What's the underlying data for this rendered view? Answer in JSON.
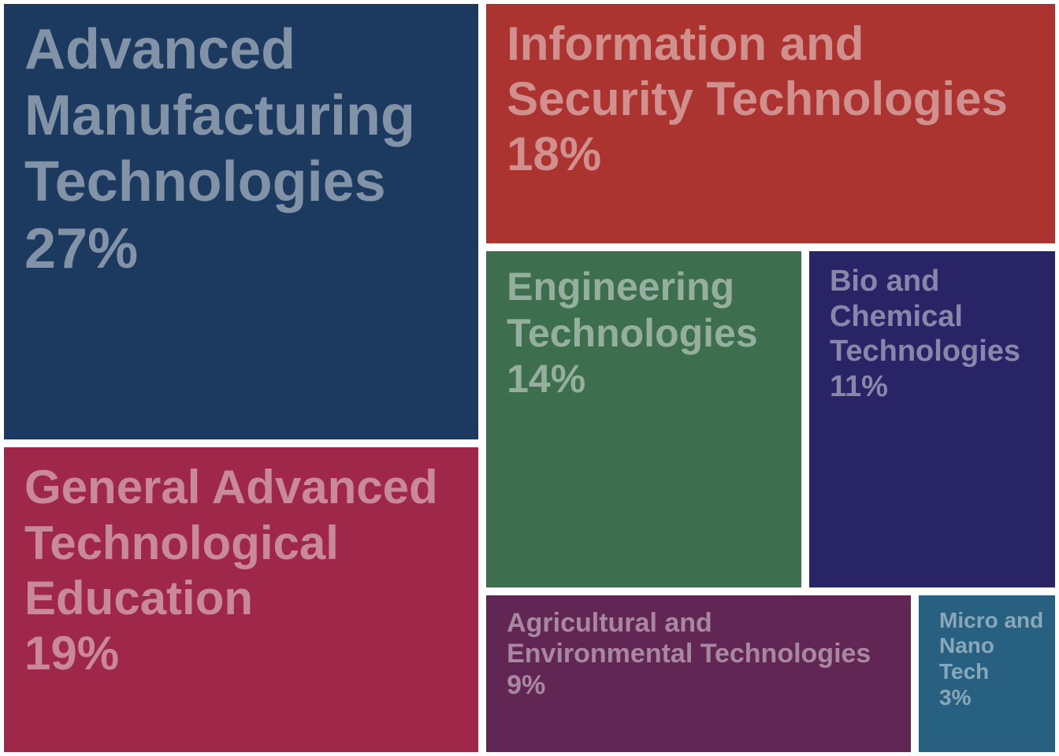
{
  "chart_data": {
    "type": "treemap",
    "categories": [
      "Advanced Manufacturing Technologies",
      "General Advanced Technological Education",
      "Information and Security Technologies",
      "Engineering Technologies",
      "Bio and Chemical Technologies",
      "Agricultural and Environmental Technologies",
      "Micro and Nano Tech"
    ],
    "values": [
      27,
      19,
      18,
      14,
      11,
      9,
      3
    ],
    "value_labels": [
      "27%",
      "19%",
      "18%",
      "14%",
      "11%",
      "9%",
      "3%"
    ],
    "colors": [
      "#1c3a5f",
      "#9e274a",
      "#ab3430",
      "#3d6e4d",
      "#292466",
      "#622654",
      "#276080"
    ]
  }
}
